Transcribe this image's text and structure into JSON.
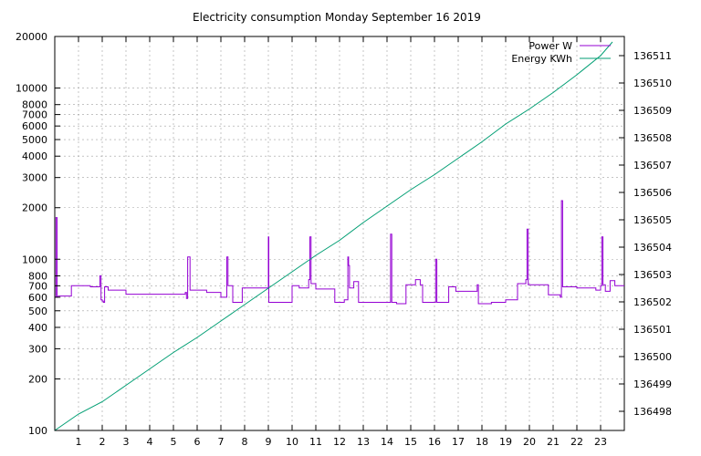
{
  "chart_data": {
    "type": "line",
    "title": "Electricity consumption Monday September 16 2019",
    "x": {
      "range": [
        0,
        24
      ],
      "ticks": [
        1,
        2,
        3,
        4,
        5,
        6,
        7,
        8,
        9,
        10,
        11,
        12,
        13,
        14,
        15,
        16,
        17,
        18,
        19,
        20,
        21,
        22,
        23
      ],
      "tick_labels": [
        "1",
        "2",
        "3",
        "4",
        "5",
        "6",
        "7",
        "8",
        "9",
        "10",
        "11",
        "12",
        "13",
        "14",
        "15",
        "16",
        "17",
        "18",
        "19",
        "20",
        "21",
        "22",
        "23"
      ]
    },
    "y_left": {
      "scale": "log",
      "range": [
        100,
        20000
      ],
      "ticks": [
        100,
        200,
        300,
        400,
        500,
        600,
        700,
        800,
        1000,
        2000,
        3000,
        4000,
        5000,
        6000,
        7000,
        8000,
        10000,
        20000
      ],
      "tick_labels": [
        "100",
        "200",
        "300",
        "400",
        "500",
        "600",
        "700",
        "800",
        "1000",
        "2000",
        "3000",
        "4000",
        "5000",
        "6000",
        "7000",
        "8000",
        "10000",
        "20000"
      ]
    },
    "y_right": {
      "scale": "linear",
      "range": [
        136497.3,
        136511.7
      ],
      "ticks": [
        136498,
        136499,
        136500,
        136501,
        136502,
        136503,
        136504,
        136505,
        136506,
        136507,
        136508,
        136509,
        136510,
        136511
      ],
      "tick_labels": [
        "136498",
        "136499",
        "136500",
        "136501",
        "136502",
        "136503",
        "136504",
        "136505",
        "136506",
        "136507",
        "136508",
        "136509",
        "136510",
        "136511"
      ]
    },
    "grid": true,
    "legend_position": "top-right",
    "series": [
      {
        "name": "Power W",
        "axis": "left",
        "color": "#9400d3",
        "style": "steps",
        "x": [
          0,
          0.05,
          0.1,
          0.15,
          0.7,
          1.5,
          1.9,
          1.95,
          2.0,
          2.05,
          2.1,
          2.25,
          2.4,
          3.0,
          5.5,
          5.55,
          5.6,
          5.7,
          6.4,
          7.0,
          7.2,
          7.25,
          7.3,
          7.5,
          7.7,
          7.9,
          9.0,
          9.02,
          9.05,
          10.0,
          10.3,
          10.7,
          10.75,
          10.8,
          11.0,
          11.8,
          12.2,
          12.35,
          12.38,
          12.42,
          12.6,
          12.8,
          13.1,
          14.1,
          14.15,
          14.2,
          14.4,
          14.8,
          15.2,
          15.4,
          15.5,
          16.0,
          16.05,
          16.1,
          16.6,
          16.9,
          17.8,
          17.85,
          18.4,
          19.0,
          19.5,
          19.85,
          19.9,
          19.95,
          20.8,
          21.3,
          21.35,
          21.4,
          22.0,
          22.8,
          23.0,
          23.05,
          23.1,
          23.2,
          23.4,
          23.6,
          24.0
        ],
        "y": [
          600,
          1750,
          600,
          610,
          700,
          690,
          800,
          580,
          570,
          560,
          690,
          660,
          660,
          625,
          640,
          590,
          1030,
          660,
          640,
          600,
          600,
          1030,
          700,
          560,
          560,
          680,
          1350,
          560,
          560,
          700,
          680,
          760,
          1350,
          720,
          670,
          560,
          580,
          1030,
          920,
          680,
          740,
          560,
          560,
          560,
          1400,
          560,
          550,
          710,
          760,
          710,
          560,
          560,
          1000,
          560,
          690,
          650,
          710,
          550,
          560,
          580,
          720,
          760,
          1500,
          710,
          620,
          600,
          2200,
          690,
          680,
          660,
          700,
          1350,
          710,
          650,
          750,
          700,
          700
        ]
      },
      {
        "name": "Energy KWh",
        "axis": "right",
        "color": "#009e73",
        "style": "line",
        "x": [
          0,
          1,
          2,
          3,
          4,
          5,
          6,
          7,
          8,
          9,
          10,
          11,
          12,
          13,
          14,
          15,
          16,
          17,
          18,
          19,
          20,
          21,
          22,
          23,
          23.5
        ],
        "y": [
          136497.3,
          136497.9,
          136498.35,
          136498.95,
          136499.55,
          136500.15,
          136500.7,
          136501.3,
          136501.9,
          136502.5,
          136503.1,
          136503.7,
          136504.25,
          136504.9,
          136505.5,
          136506.1,
          136506.65,
          136507.25,
          136507.85,
          136508.5,
          136509.05,
          136509.65,
          136510.3,
          136511.0,
          136511.5
        ]
      }
    ]
  }
}
